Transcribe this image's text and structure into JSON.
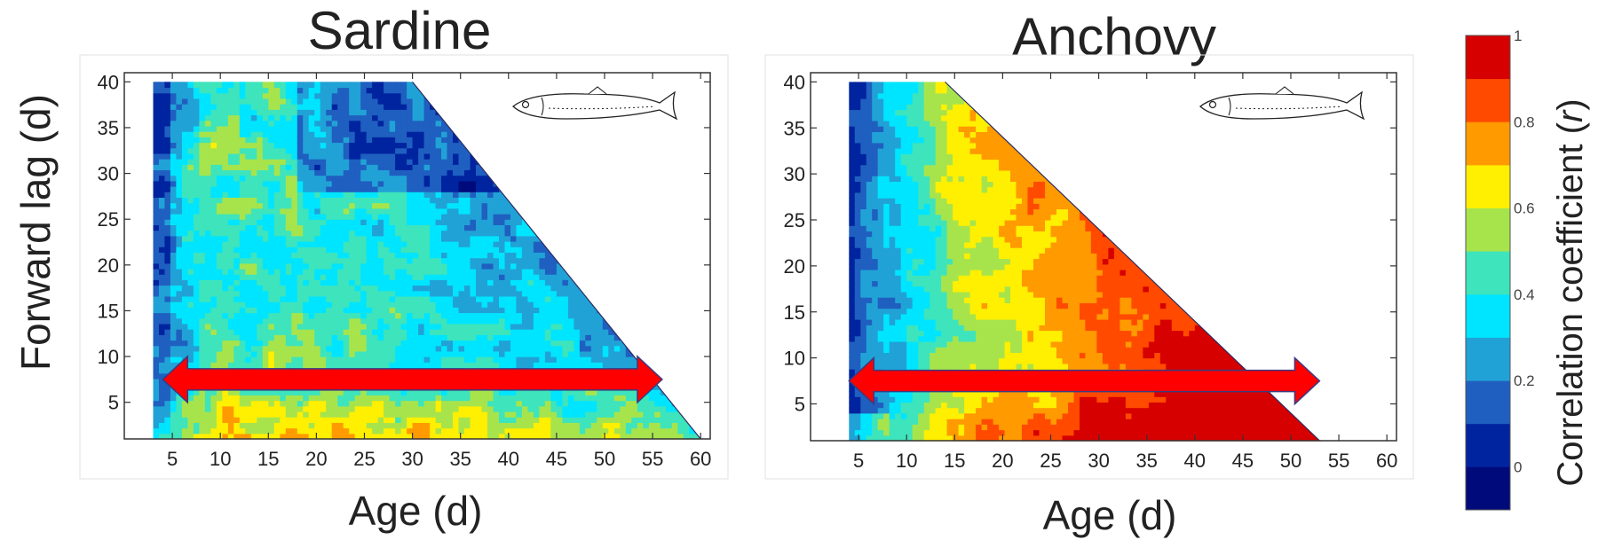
{
  "figure": {
    "y_axis_title": "Forward lag (d)",
    "colorbar_title_main": "Correlation coefficient (",
    "colorbar_title_var": "r",
    "colorbar_title_end": ")"
  },
  "chart_data": [
    {
      "type": "heatmap",
      "title": "Sardine",
      "xlabel": "Age (d)",
      "ylabel": "Forward lag (d)",
      "x_ticks": [
        5,
        10,
        15,
        20,
        25,
        30,
        35,
        40,
        45,
        50,
        55,
        60
      ],
      "y_ticks": [
        5,
        10,
        15,
        20,
        25,
        30,
        35,
        40
      ],
      "xlim": [
        0,
        61
      ],
      "ylim": [
        1,
        41
      ],
      "data_domain": {
        "age_min": 3,
        "age_max_at_lag1": 60,
        "lag_max": 40,
        "triangular_upper_edge": "age + lag <= 70"
      },
      "arrow": {
        "from_age": 4,
        "to_age": 56,
        "lag": 7.5,
        "direction": "both"
      },
      "icon": "sardine-fish-icon"
    },
    {
      "type": "heatmap",
      "title": "Anchovy",
      "xlabel": "Age (d)",
      "ylabel": "Forward lag (d)",
      "x_ticks": [
        5,
        10,
        15,
        20,
        25,
        30,
        35,
        40,
        45,
        50,
        55,
        60
      ],
      "y_ticks": [
        5,
        10,
        15,
        20,
        25,
        30,
        35,
        40
      ],
      "xlim": [
        0,
        61
      ],
      "ylim": [
        1,
        41
      ],
      "data_domain": {
        "age_min": 4,
        "age_max_at_lag1": 53,
        "lag_max": 40,
        "triangular_upper_edge": "age + lag <= 54"
      },
      "arrow": {
        "from_age": 4,
        "to_age": 53,
        "lag": 7.5,
        "direction": "both"
      },
      "icon": "anchovy-fish-icon"
    }
  ],
  "colorbar": {
    "tick_labels": [
      "1",
      "0.8",
      "0.6",
      "0.4",
      "0.2",
      "0"
    ],
    "tick_values": [
      1,
      0.8,
      0.6,
      0.4,
      0.2,
      0
    ],
    "range": [
      -0.1,
      1.0
    ],
    "levels_step": 0.1,
    "colors": [
      "#000a7a",
      "#00249f",
      "#1f5fc0",
      "#21a2d6",
      "#00e5ff",
      "#3ee4bb",
      "#a7e44c",
      "#ffef00",
      "#ff9a00",
      "#ff4a00",
      "#d60000"
    ]
  }
}
